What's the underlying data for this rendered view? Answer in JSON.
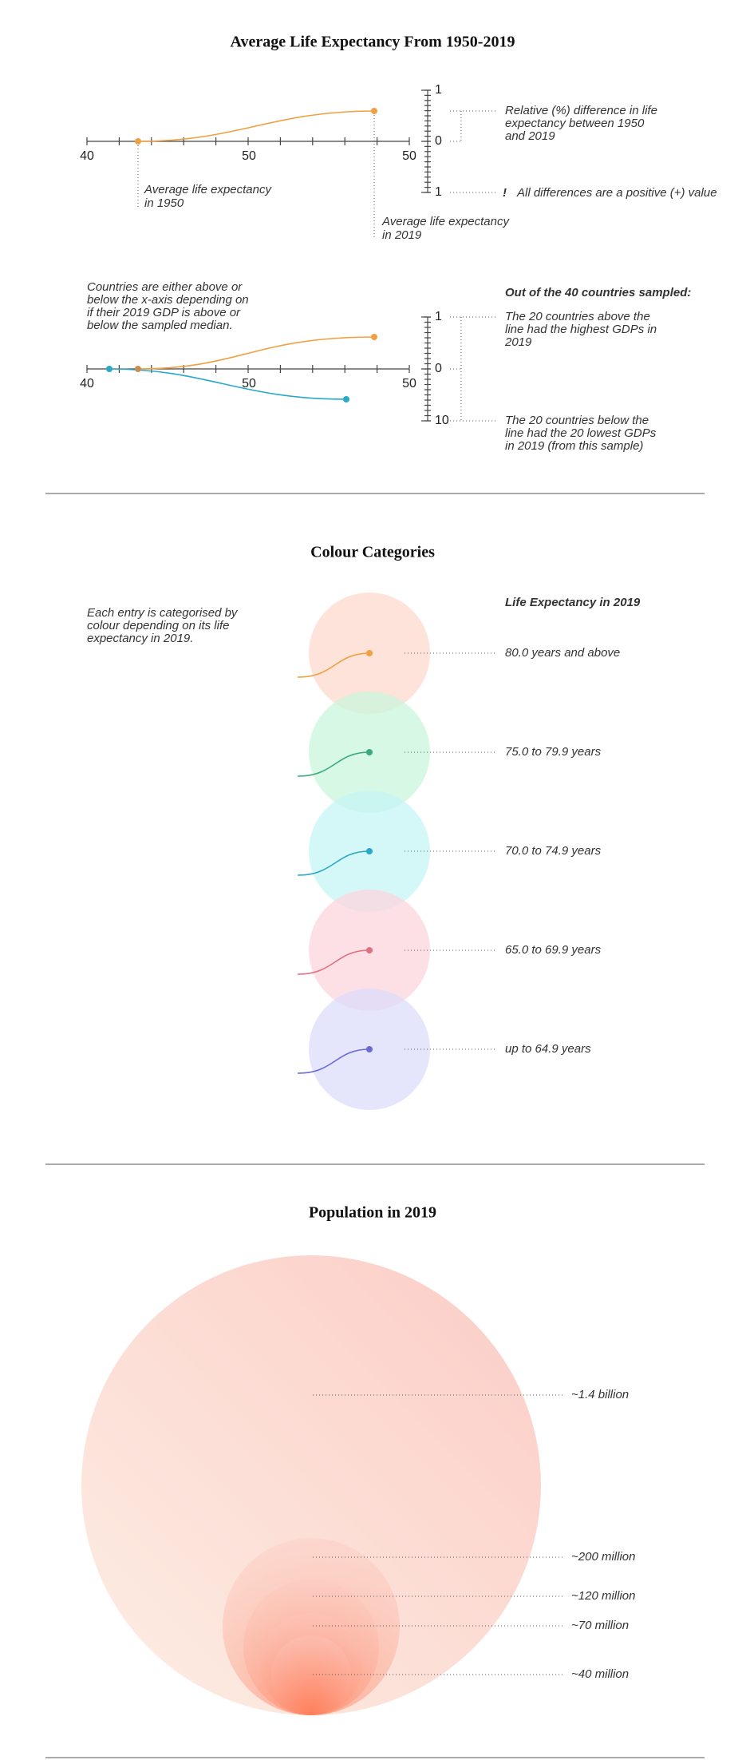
{
  "life_expectancy": {
    "title": "Average Life Expectancy From 1950-2019",
    "axis_labels": [
      "40",
      "50",
      "50"
    ],
    "scale_labels": [
      "1",
      "0",
      "1"
    ],
    "note_1950": [
      "Average life expectancy",
      "in 1950"
    ],
    "note_2019": [
      "Average life expectancy",
      "in 2019"
    ],
    "relative_note": [
      "Relative (%) difference in life",
      "expectancy between 1950",
      "and 2019"
    ],
    "exclamation": "!",
    "positive_note": "All differences are a positive (+) value"
  },
  "gdp": {
    "note": [
      "Countries are either above or",
      "below the x-axis depending on",
      "if their 2019 GDP is above or",
      "below the sampled median."
    ],
    "axis_labels": [
      "40",
      "50",
      "50"
    ],
    "scale_labels": [
      "1",
      "0",
      "10"
    ],
    "sample_heading": "Out of the 40 countries sampled:",
    "above_note": [
      "The 20 countries above the",
      "line had the highest GDPs in",
      "2019"
    ],
    "below_note": [
      "The 20 countries below the",
      "line had the 20 lowest GDPs",
      "in 2019 (from this sample)"
    ]
  },
  "colour_categories": {
    "title": "Colour Categories",
    "note": [
      "Each entry is categorised by",
      "colour depending on its life",
      "expectancy in 2019."
    ],
    "legend_title": "Life Expectancy in 2019",
    "categories": [
      {
        "label": "80.0 years and above",
        "color": "#f0a040",
        "fill": "#fcd9cc"
      },
      {
        "label": "75.0 to 79.9 years",
        "color": "#3aaa7a",
        "fill": "#c9f5dc"
      },
      {
        "label": "70.0 to 74.9 years",
        "color": "#2aa8c8",
        "fill": "#c5f5f5"
      },
      {
        "label": "65.0 to 69.9 years",
        "color": "#e07080",
        "fill": "#fcd5de"
      },
      {
        "label": "up to 64.9 years",
        "color": "#6a6ad8",
        "fill": "#dcdcfa"
      }
    ]
  },
  "population": {
    "title": "Population in 2019",
    "circles": [
      {
        "label": "~1.4 billion"
      },
      {
        "label": "~200 million"
      },
      {
        "label": "~120 million"
      },
      {
        "label": "~70 million"
      },
      {
        "label": "~40 million"
      }
    ]
  }
}
